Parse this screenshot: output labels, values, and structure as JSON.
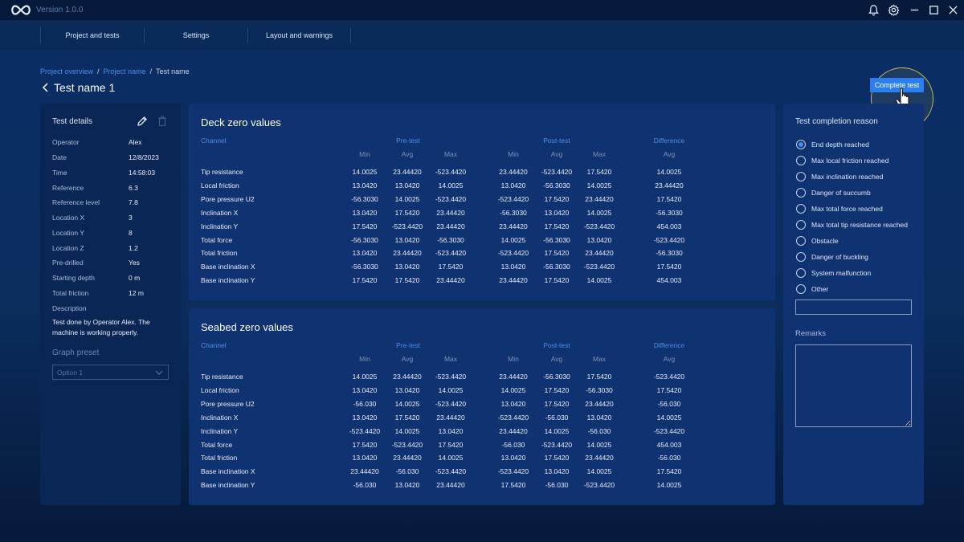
{
  "app": {
    "version": "Version 1.0.0"
  },
  "nav": {
    "items": [
      "Project and tests",
      "Settings",
      "Layout and warnings"
    ]
  },
  "breadcrumb": {
    "items": [
      "Project overview",
      "Project name",
      "Test name"
    ]
  },
  "page": {
    "title": "Test name 1"
  },
  "actions": {
    "complete_label": "Complete test"
  },
  "details": {
    "title": "Test details",
    "rows": [
      {
        "label": "Operator",
        "value": "Alex"
      },
      {
        "label": "Date",
        "value": "12/8/2023"
      },
      {
        "label": "Time",
        "value": "14:58:03"
      },
      {
        "label": "Reference",
        "value": "6.3"
      },
      {
        "label": "Reference level",
        "value": "7.8"
      },
      {
        "label": "Location X",
        "value": "3"
      },
      {
        "label": "Location Y",
        "value": "8"
      },
      {
        "label": "Location Z",
        "value": "1.2"
      },
      {
        "label": "Pre-drilled",
        "value": "Yes"
      },
      {
        "label": "Starting depth",
        "value": "0 m"
      },
      {
        "label": "Total friction",
        "value": "12 m"
      }
    ],
    "description_label": "Description",
    "description": "Test done by Operator Alex. The machine is working properly.",
    "graph_preset_label": "Graph preset",
    "graph_preset_value": "Option 1"
  },
  "table_headers": {
    "channel": "Channel",
    "groups": [
      "Pre-test",
      "Post-test",
      "Difference"
    ],
    "sub": [
      "Min",
      "Avg",
      "Max",
      "Min",
      "Avg",
      "Max",
      "Avg"
    ]
  },
  "deck": {
    "title": "Deck zero values",
    "rows": [
      {
        "channel": "Tip resistance",
        "values": [
          "14.0025",
          "23.44420",
          "-523.4420",
          "23.44420",
          "-523.4420",
          "17.5420",
          "14.0025"
        ]
      },
      {
        "channel": "Local friction",
        "values": [
          "13.0420",
          "13.0420",
          "14.0025",
          "13.0420",
          "-56.3030",
          "14.0025",
          "23.44420"
        ]
      },
      {
        "channel": "Pore pressure U2",
        "values": [
          "-56.3030",
          "14.0025",
          "-523.4420",
          "-523.4420",
          "17.5420",
          "23.44420",
          "17.5420"
        ]
      },
      {
        "channel": "Inclination X",
        "values": [
          "13.0420",
          "17.5420",
          "23.44420",
          "-56.3030",
          "13.0420",
          "14.0025",
          "-56.3030"
        ]
      },
      {
        "channel": "Inclination Y",
        "values": [
          "17.5420",
          "-523.4420",
          "23.44420",
          "23.44420",
          "17.5420",
          "-523.4420",
          "454.003"
        ]
      },
      {
        "channel": "Total force",
        "values": [
          "-56.3030",
          "13.0420",
          "-56.3030",
          "14.0025",
          "-56.3030",
          "13.0420",
          "-523.4420"
        ]
      },
      {
        "channel": "Total friction",
        "values": [
          "13.0420",
          "23.44420",
          "-523.4420",
          "-523.4420",
          "17.5420",
          "23.44420",
          "-56.3030"
        ]
      },
      {
        "channel": "Base inclination X",
        "values": [
          "-56.3030",
          "13.0420",
          "17.5420",
          "13.0420",
          "-56.3030",
          "-523.4420",
          "17.5420"
        ]
      },
      {
        "channel": "Base inclination Y",
        "values": [
          "17.5420",
          "17.5420",
          "23.44420",
          "23.44420",
          "17.5420",
          "14.0025",
          "454.003"
        ]
      }
    ]
  },
  "seabed": {
    "title": "Seabed zero values",
    "rows": [
      {
        "channel": "Tip resistance",
        "values": [
          "14.0025",
          "23.44420",
          "-523.4420",
          "23.44420",
          "-56.3030",
          "17.5420",
          "-523.4420"
        ]
      },
      {
        "channel": "Local friction",
        "values": [
          "13.0420",
          "13.0420",
          "14.0025",
          "14.0025",
          "17.5420",
          "-56.3030",
          "17.5420"
        ]
      },
      {
        "channel": "Pore pressure U2",
        "values": [
          "-56.030",
          "14.0025",
          "-523.4420",
          "13.0420",
          "17.5420",
          "23.44420",
          "-56.030"
        ]
      },
      {
        "channel": "Inclination X",
        "values": [
          "13.0420",
          "17.5420",
          "23.44420",
          "-523.4420",
          "-56.030",
          "13.0420",
          "14.0025"
        ]
      },
      {
        "channel": "Inclination Y",
        "values": [
          "-523.4420",
          "14.0025",
          "13.0420",
          "23.44420",
          "14.0025",
          "-56.030",
          "-523.4420"
        ]
      },
      {
        "channel": "Total force",
        "values": [
          "17.5420",
          "-523.4420",
          "17.5420",
          "-56.030",
          "-523.4420",
          "14.0025",
          "454.003"
        ]
      },
      {
        "channel": "Total friction",
        "values": [
          "13.0420",
          "23.44420",
          "14.0025",
          "13.0420",
          "17.5420",
          "23.44420",
          "-56.030"
        ]
      },
      {
        "channel": "Base inclination X",
        "values": [
          "23.44420",
          "-56.030",
          "-523.4420",
          "-523.4420",
          "13.0420",
          "14.0025",
          "17.5420"
        ]
      },
      {
        "channel": "Base inclination Y",
        "values": [
          "-56.030",
          "13.0420",
          "23.44420",
          "17.5420",
          "-56.030",
          "-523.4420",
          "14.0025"
        ]
      }
    ]
  },
  "completion": {
    "title": "Test completion reason",
    "selected": 0,
    "options": [
      "End depth reached",
      "Max local friction reached",
      "Max inclination reached",
      "Danger of succumb",
      "Max total force reached",
      "Max total tip resistance reached",
      "Obstacle",
      "Danger of buckling",
      "System malfunction",
      "Other"
    ],
    "other_value": "",
    "remarks_label": "Remarks",
    "remarks_value": ""
  },
  "colors": {
    "accent": "#2a7ef0",
    "link": "#4f8ee8",
    "panel": "#0f3270"
  }
}
